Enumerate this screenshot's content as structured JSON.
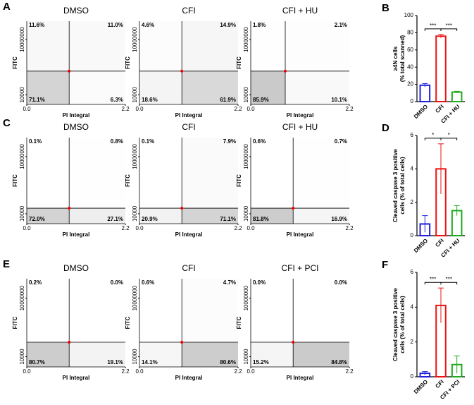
{
  "chart_data": [
    {
      "type": "quadrant",
      "panel": "A",
      "title": "DMSO",
      "xlabel": "PI Integral",
      "ylabel": "FITC",
      "xlim": [
        0,
        2.2
      ],
      "xticks": [
        {
          "value": 0,
          "label": "0.0"
        },
        2.2
      ],
      "ylim": [
        3000,
        100000000
      ],
      "yticks": [
        10000,
        10000000
      ],
      "log_y": true,
      "quadrants": {
        "values": [
          11.6,
          11.0,
          71.1,
          6.3
        ],
        "value_labels": [
          "11.6%",
          "11.0%",
          "71.1%",
          "6.3%"
        ]
      }
    },
    {
      "type": "quadrant",
      "title": "CFI",
      "xlabel": "PI Integral",
      "ylabel": "FITC",
      "xlim": [
        0,
        2.2
      ],
      "xticks": [
        {
          "value": 0,
          "label": "0.0"
        },
        2.2
      ],
      "ylim": [
        3000,
        100000000
      ],
      "yticks": [
        10000,
        10000000
      ],
      "log_y": true,
      "quadrants": {
        "values": [
          4.6,
          14.9,
          18.6,
          61.9
        ],
        "value_labels": [
          "4.6%",
          "14.9%",
          "18.6%",
          "61.9%"
        ]
      }
    },
    {
      "type": "quadrant",
      "title": "CFI + HU",
      "xlabel": "PI Integral",
      "ylabel": "FITC",
      "xlim": [
        0,
        2.2
      ],
      "xticks": [
        {
          "value": 0,
          "label": "0.0"
        },
        2.2
      ],
      "ylim": [
        3000,
        100000000
      ],
      "yticks": [
        10000,
        10000000
      ],
      "log_y": true,
      "quadrants": {
        "values": [
          1.8,
          2.1,
          85.9,
          10.1
        ],
        "value_labels": [
          "1.8%",
          "2.1%",
          "85.9%",
          "10.1%"
        ]
      }
    },
    {
      "type": "bar",
      "panel": "B",
      "ylabel": [
        "≥4N cells",
        "(% total scanned)"
      ],
      "categories": [
        "DMSO",
        "CFI",
        "CFI + HU"
      ],
      "values": [
        19,
        76,
        11
      ],
      "errors": [
        2,
        2,
        1
      ],
      "colors": [
        "#1f1fdd",
        "#ee1111",
        "#22aa22"
      ],
      "ylim": [
        0,
        100
      ],
      "yticks": [
        0,
        20,
        40,
        60,
        80,
        100
      ],
      "significance_labels": [
        "***",
        "***"
      ]
    },
    {
      "type": "quadrant",
      "panel": "C",
      "title": "DMSO",
      "xlabel": "PI Integral",
      "ylabel": "FITC",
      "xlim": [
        0,
        2.2
      ],
      "xticks": [
        {
          "value": 0,
          "label": "0.0"
        },
        2.2
      ],
      "ylim": [
        3000,
        100000000
      ],
      "yticks": [
        10000,
        10000000
      ],
      "log_y": true,
      "quadrants": {
        "values": [
          0.1,
          0.8,
          72.0,
          27.1
        ],
        "value_labels": [
          "0.1%",
          "0.8%",
          "72.0%",
          "27.1%"
        ]
      }
    },
    {
      "type": "quadrant",
      "title": "CFI",
      "xlabel": "PI Integral",
      "ylabel": "FITC",
      "xlim": [
        0,
        2.2
      ],
      "xticks": [
        {
          "value": 0,
          "label": "0.0"
        },
        2.2
      ],
      "ylim": [
        3000,
        100000000
      ],
      "yticks": [
        10000,
        10000000
      ],
      "log_y": true,
      "quadrants": {
        "values": [
          0.1,
          7.9,
          20.9,
          71.1
        ],
        "value_labels": [
          "0.1%",
          "7.9%",
          "20.9%",
          "71.1%"
        ]
      }
    },
    {
      "type": "quadrant",
      "title": "CFI + HU",
      "xlabel": "PI Integral",
      "ylabel": "FITC",
      "xlim": [
        0,
        2.2
      ],
      "xticks": [
        {
          "value": 0,
          "label": "0.0"
        },
        2.2
      ],
      "ylim": [
        3000,
        100000000
      ],
      "yticks": [
        10000,
        10000000
      ],
      "log_y": true,
      "quadrants": {
        "values": [
          0.6,
          0.7,
          81.8,
          16.9
        ],
        "value_labels": [
          "0.6%",
          "0.7%",
          "81.8%",
          "16.9%"
        ]
      }
    },
    {
      "type": "bar",
      "panel": "D",
      "ylabel": [
        "Cleaved caspase 3 positive",
        "cells (% of total cells)"
      ],
      "categories": [
        "DMSO",
        "CFI",
        "CFI + HU"
      ],
      "values": [
        0.7,
        4.0,
        1.5
      ],
      "errors": [
        0.5,
        1.5,
        0.3
      ],
      "colors": [
        "#1f1fdd",
        "#ee1111",
        "#22aa22"
      ],
      "ylim": [
        0,
        6
      ],
      "yticks": [
        0,
        2,
        4,
        6
      ],
      "significance_labels": [
        "*",
        "*"
      ]
    },
    {
      "type": "quadrant",
      "panel": "E",
      "title": "DMSO",
      "xlabel": "PI Integral",
      "ylabel": "FITC",
      "xlim": [
        0,
        2.2
      ],
      "xticks": [
        {
          "value": 0,
          "label": "0.0"
        },
        2.2
      ],
      "ylim": [
        3000,
        100000000
      ],
      "yticks": [
        10000,
        10000000
      ],
      "log_y": true,
      "quadrants": {
        "values": [
          0.2,
          0.0,
          80.7,
          19.1
        ],
        "value_labels": [
          "0.2%",
          "0.0%",
          "80.7%",
          "19.1%"
        ]
      }
    },
    {
      "type": "quadrant",
      "title": "CFI",
      "xlabel": "PI Integral",
      "ylabel": "FITC",
      "xlim": [
        0,
        2.2
      ],
      "xticks": [
        {
          "value": 0,
          "label": "0.0"
        },
        2.2
      ],
      "ylim": [
        3000,
        100000000
      ],
      "yticks": [
        10000,
        10000000
      ],
      "log_y": true,
      "quadrants": {
        "values": [
          0.6,
          4.7,
          14.1,
          80.6
        ],
        "value_labels": [
          "0.6%",
          "4.7%",
          "14.1%",
          "80.6%"
        ]
      }
    },
    {
      "type": "quadrant",
      "title": "CFI + PCI",
      "xlabel": "PI Integral",
      "ylabel": "FITC",
      "xlim": [
        0,
        2.2
      ],
      "xticks": [
        {
          "value": 0,
          "label": "0.0"
        },
        2.2
      ],
      "ylim": [
        3000,
        100000000
      ],
      "yticks": [
        10000,
        10000000
      ],
      "log_y": true,
      "quadrants": {
        "values": [
          0.0,
          0.0,
          15.2,
          84.8
        ],
        "value_labels": [
          "0.0%",
          "0.0%",
          "15.2%",
          "84.8%"
        ]
      }
    },
    {
      "type": "bar",
      "panel": "F",
      "ylabel": [
        "Cleaved caspase 3 positive",
        "cells (% of total cells)"
      ],
      "categories": [
        "DMSO",
        "CFI",
        "CFI + PCI"
      ],
      "values": [
        0.2,
        4.1,
        0.7
      ],
      "errors": [
        0.1,
        1.0,
        0.5
      ],
      "colors": [
        "#1f1fdd",
        "#ee1111",
        "#22aa22"
      ],
      "ylim": [
        0,
        6
      ],
      "yticks": [
        0,
        2,
        4,
        6
      ],
      "significance_labels": [
        "***",
        "***"
      ]
    }
  ]
}
